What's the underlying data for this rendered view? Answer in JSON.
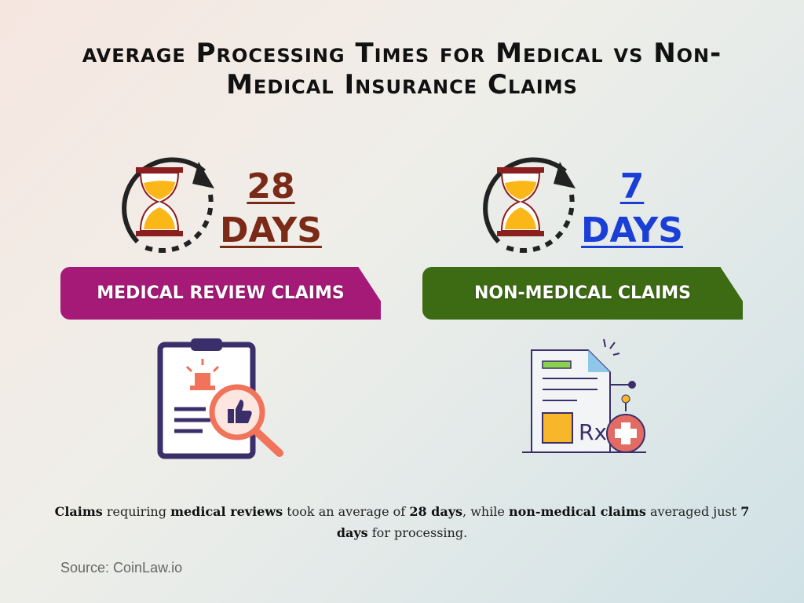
{
  "title": "average Processing Times for Medical vs Non-Medical Insurance Claims",
  "medical": {
    "value": "28",
    "unit": "DAYS",
    "label": "MEDICAL REVIEW CLAIMS",
    "color": "#a51a77",
    "number_color": "#7a2a16"
  },
  "non_medical": {
    "value": "7",
    "unit": "DAYS",
    "label": "NON-MEDICAL CLAIMS",
    "color": "#3d6b14",
    "number_color": "#1a3fd6"
  },
  "summary": {
    "p1": "Claims",
    "p2": " requiring ",
    "p3": "medical reviews",
    "p4": " took an average of ",
    "p5": "28 days",
    "p6": ", while ",
    "p7": "non-medical claims",
    "p8": " averaged just ",
    "p9": "7 days",
    "p10": " for processing."
  },
  "source": "Source: CoinLaw.io",
  "icons": [
    "hourglass-cycle-icon",
    "clipboard-review-icon",
    "prescription-document-icon"
  ]
}
